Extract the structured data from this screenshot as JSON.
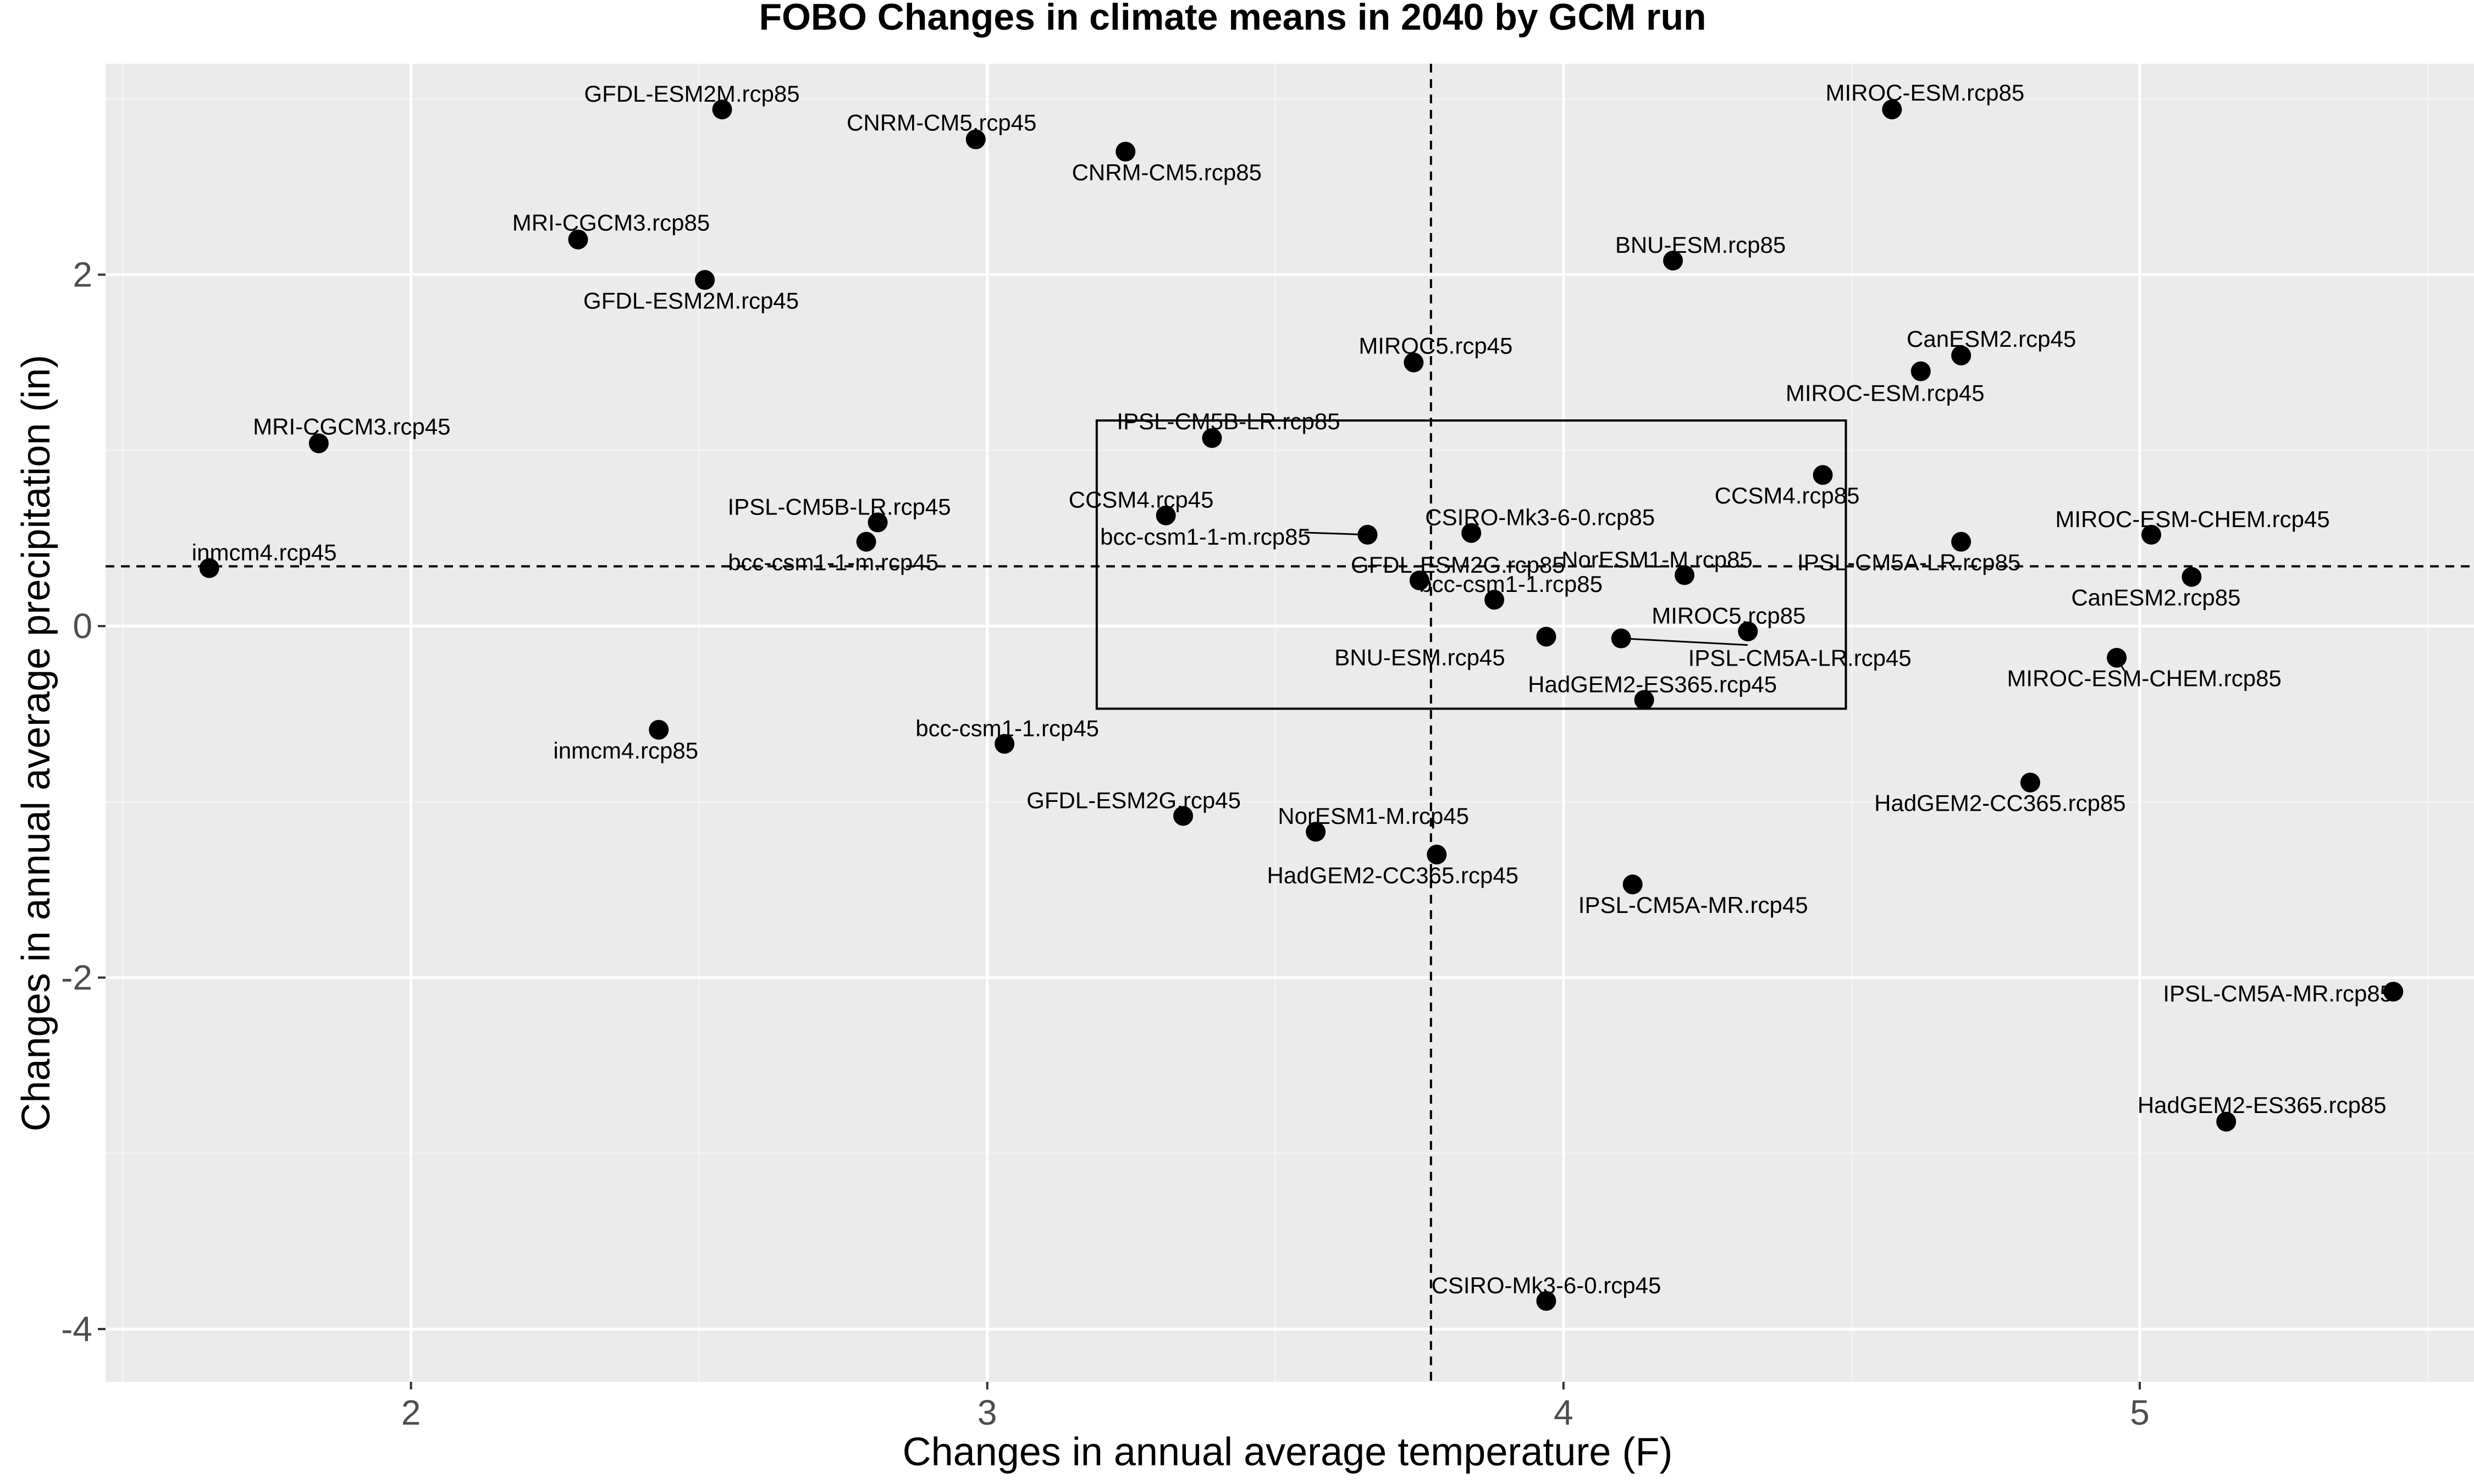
{
  "chart_data": {
    "type": "scatter",
    "title": "FOBO Changes in climate means in 2040 by GCM run",
    "xlabel": "Changes in annual average temperature (F)",
    "ylabel": "Changes in annual average precipitation (in)",
    "xlim": [
      1.47,
      5.58
    ],
    "ylim": [
      -4.3,
      3.2
    ],
    "x_ticks": [
      {
        "value": 2,
        "label": "2"
      },
      {
        "value": 3,
        "label": "3"
      },
      {
        "value": 4,
        "label": "4"
      },
      {
        "value": 5,
        "label": "5"
      }
    ],
    "y_ticks": [
      {
        "value": 2,
        "label": "2"
      },
      {
        "value": 0,
        "label": "0"
      },
      {
        "value": -2,
        "label": "-2"
      },
      {
        "value": -4,
        "label": "-4"
      }
    ],
    "grid": true,
    "reference_lines": {
      "x": 3.77,
      "y": 0.34
    },
    "highlight_box": {
      "x": [
        3.19,
        4.49
      ],
      "y": [
        -0.47,
        1.17
      ]
    },
    "points": [
      {
        "label": "GFDL-ESM2M.rcp85",
        "x": 2.54,
        "y": 2.94
      },
      {
        "label": "CNRM-CM5.rcp45",
        "x": 2.98,
        "y": 2.77
      },
      {
        "label": "CNRM-CM5.rcp85",
        "x": 3.24,
        "y": 2.7
      },
      {
        "label": "MIROC-ESM.rcp85",
        "x": 4.57,
        "y": 2.94
      },
      {
        "label": "MRI-CGCM3.rcp85",
        "x": 2.29,
        "y": 2.2
      },
      {
        "label": "GFDL-ESM2M.rcp45",
        "x": 2.51,
        "y": 1.97
      },
      {
        "label": "BNU-ESM.rcp85",
        "x": 4.19,
        "y": 2.08
      },
      {
        "label": "MIROC5.rcp45",
        "x": 3.74,
        "y": 1.5
      },
      {
        "label": "CanESM2.rcp45",
        "x": 4.69,
        "y": 1.54
      },
      {
        "label": "MIROC-ESM.rcp45",
        "x": 4.62,
        "y": 1.45
      },
      {
        "label": "MRI-CGCM3.rcp45",
        "x": 1.84,
        "y": 1.04
      },
      {
        "label": "IPSL-CM5B-LR.rcp85",
        "x": 3.39,
        "y": 1.07
      },
      {
        "label": "CCSM4.rcp85",
        "x": 4.45,
        "y": 0.86
      },
      {
        "label": "IPSL-CM5B-LR.rcp45",
        "x": 2.81,
        "y": 0.59
      },
      {
        "label": "CCSM4.rcp45",
        "x": 3.31,
        "y": 0.63
      },
      {
        "label": "bcc-csm1-1-m.rcp85",
        "x": 3.66,
        "y": 0.52
      },
      {
        "label": "CSIRO-Mk3-6-0.rcp85",
        "x": 3.84,
        "y": 0.53
      },
      {
        "label": "MIROC-ESM-CHEM.rcp45",
        "x": 5.02,
        "y": 0.52
      },
      {
        "label": "inmcm4.rcp45",
        "x": 1.65,
        "y": 0.33
      },
      {
        "label": "bcc-csm1-1-m.rcp45",
        "x": 2.79,
        "y": 0.48
      },
      {
        "label": "IPSL-CM5A-LR.rcp85",
        "x": 4.69,
        "y": 0.48
      },
      {
        "label": "NorESM1-M.rcp85",
        "x": 4.21,
        "y": 0.29
      },
      {
        "label": "GFDL-ESM2G.rcp85",
        "x": 3.75,
        "y": 0.26
      },
      {
        "label": "CanESM2.rcp85",
        "x": 5.09,
        "y": 0.28
      },
      {
        "label": "bcc-csm1-1.rcp85",
        "x": 3.88,
        "y": 0.15
      },
      {
        "label": "MIROC5.rcp85",
        "x": 4.32,
        "y": -0.03
      },
      {
        "label": "BNU-ESM.rcp45",
        "x": 3.97,
        "y": -0.06
      },
      {
        "label": "IPSL-CM5A-LR.rcp45",
        "x": 4.1,
        "y": -0.07
      },
      {
        "label": "MIROC-ESM-CHEM.rcp85",
        "x": 4.96,
        "y": -0.18
      },
      {
        "label": "HadGEM2-ES365.rcp45",
        "x": 4.14,
        "y": -0.42
      },
      {
        "label": "inmcm4.rcp85",
        "x": 2.43,
        "y": -0.59
      },
      {
        "label": "bcc-csm1-1.rcp45",
        "x": 3.03,
        "y": -0.67
      },
      {
        "label": "HadGEM2-CC365.rcp85",
        "x": 4.81,
        "y": -0.89
      },
      {
        "label": "GFDL-ESM2G.rcp45",
        "x": 3.34,
        "y": -1.08
      },
      {
        "label": "NorESM1-M.rcp45",
        "x": 3.57,
        "y": -1.17
      },
      {
        "label": "HadGEM2-CC365.rcp45",
        "x": 3.78,
        "y": -1.3
      },
      {
        "label": "IPSL-CM5A-MR.rcp45",
        "x": 4.12,
        "y": -1.47
      },
      {
        "label": "IPSL-CM5A-MR.rcp85",
        "x": 5.44,
        "y": -2.08
      },
      {
        "label": "HadGEM2-ES365.rcp85",
        "x": 5.15,
        "y": -2.82
      },
      {
        "label": "CSIRO-Mk3-6-0.rcp45",
        "x": 3.97,
        "y": -3.84
      }
    ],
    "colors": {
      "panel": "#ebebeb",
      "grid_major": "#ffffff",
      "grid_minor": "#f4f4f4",
      "point": "#000000",
      "tick_text": "#4d4d4d"
    }
  }
}
